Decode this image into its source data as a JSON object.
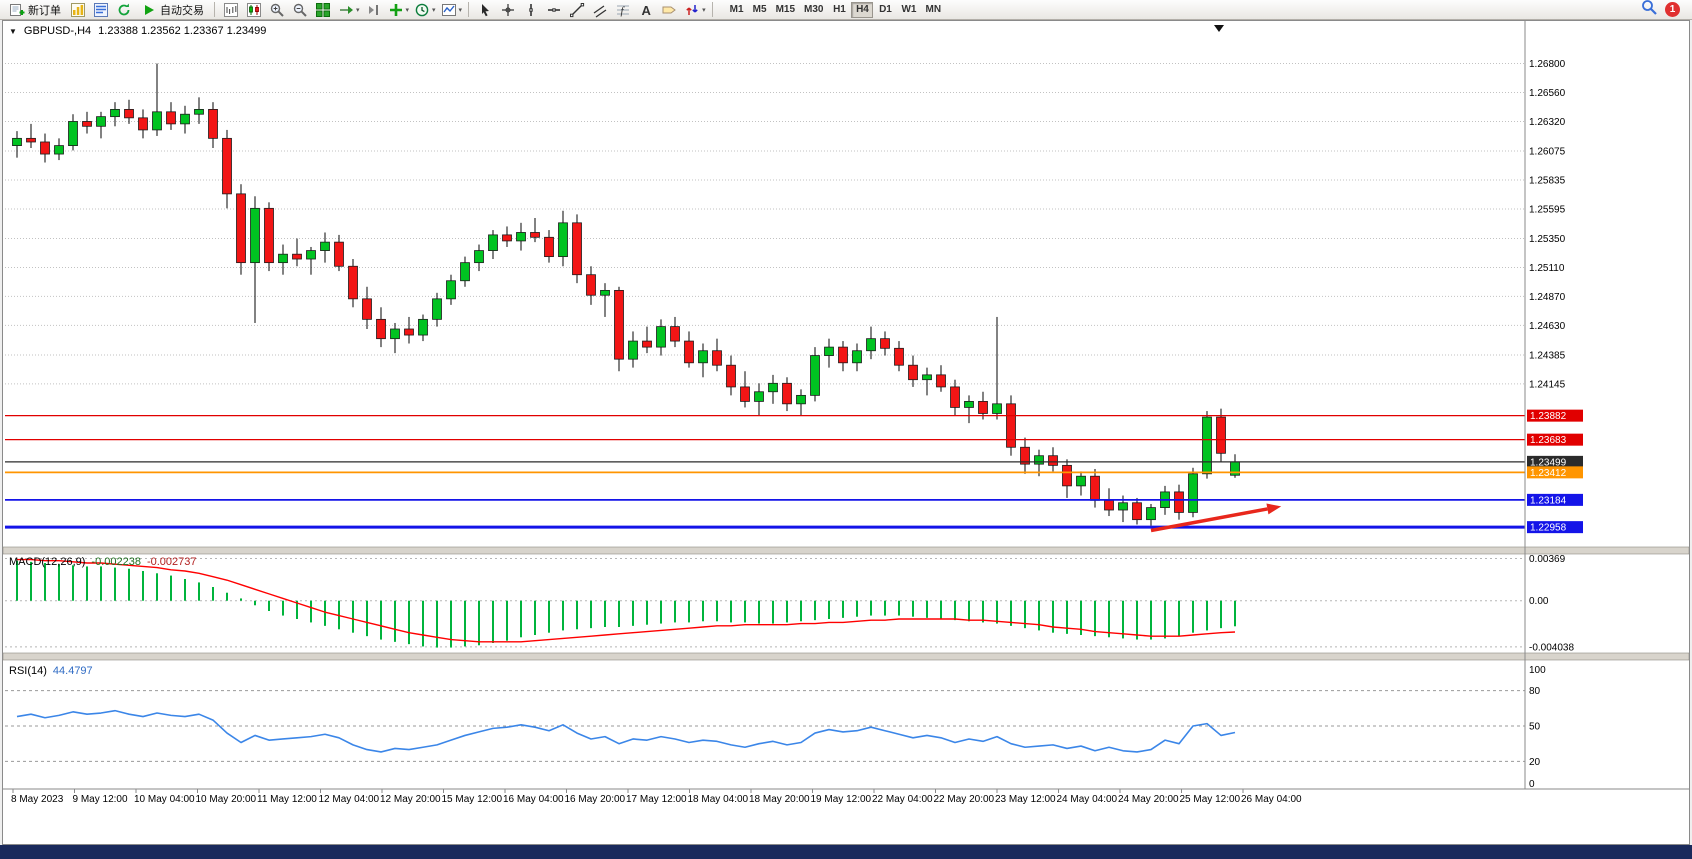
{
  "toolbar": {
    "new_order_label": "新订单",
    "auto_trading_label": "自动交易",
    "timeframes": [
      "M1",
      "M5",
      "M15",
      "M30",
      "H1",
      "H4",
      "D1",
      "W1",
      "MN"
    ],
    "active_timeframe": "H4",
    "notification_count": "1",
    "icon_names": [
      "new-order-icon",
      "charts-icon",
      "market-watch-icon",
      "navigator-icon",
      "autotrading-play-icon",
      "bar-chart-icon",
      "candlestick-chart-icon",
      "zoom-in-icon",
      "zoom-out-icon",
      "tile-windows-icon",
      "auto-scroll-icon",
      "chart-shift-icon",
      "indicators-icon",
      "periods-icon",
      "templates-icon",
      "cursor-icon",
      "crosshair-icon",
      "vertical-line-icon",
      "horizontal-line-icon",
      "trendline-icon",
      "channel-icon",
      "fibonacci-icon",
      "text-icon",
      "label-icon",
      "arrows-icon",
      "search-icon",
      "notification-badge"
    ]
  },
  "x_axis": {
    "labels": [
      "8 May 2023",
      "9 May 12:00",
      "10 May 04:00",
      "10 May 20:00",
      "11 May 12:00",
      "12 May 04:00",
      "12 May 20:00",
      "15 May 12:00",
      "16 May 04:00",
      "16 May 20:00",
      "17 May 12:00",
      "18 May 04:00",
      "18 May 20:00",
      "19 May 12:00",
      "22 May 04:00",
      "22 May 20:00",
      "23 May 12:00",
      "24 May 04:00",
      "24 May 20:00",
      "25 May 12:00",
      "26 May 04:00"
    ]
  },
  "chart_data": [
    {
      "type": "candlestick",
      "symbol": "GBPUSD-,H4",
      "ohlc_text": "1.23388 1.23562 1.23367 1.23499",
      "open": "1.23388",
      "high": "1.23562",
      "low": "1.23367",
      "close": "1.23499",
      "ylim": [
        1.2281,
        1.2702
      ],
      "y_ticks": [
        "1.26800",
        "1.26560",
        "1.26320",
        "1.26075",
        "1.25835",
        "1.25595",
        "1.25350",
        "1.25110",
        "1.24870",
        "1.24630",
        "1.24385",
        "1.24145"
      ],
      "grid": "dotted-horizontal",
      "up_color": "#00C321",
      "down_color": "#F21515",
      "outline_color": "#1c1c1c",
      "candles": [
        [
          1.2612,
          1.2624,
          1.2602,
          1.2618
        ],
        [
          1.2618,
          1.263,
          1.261,
          1.2615
        ],
        [
          1.2615,
          1.2622,
          1.2598,
          1.2605
        ],
        [
          1.2605,
          1.2618,
          1.26,
          1.2612
        ],
        [
          1.2612,
          1.2638,
          1.2608,
          1.2632
        ],
        [
          1.2632,
          1.264,
          1.2622,
          1.2628
        ],
        [
          1.2628,
          1.264,
          1.2618,
          1.2636
        ],
        [
          1.2636,
          1.2648,
          1.2628,
          1.2642
        ],
        [
          1.2642,
          1.265,
          1.263,
          1.2635
        ],
        [
          1.2635,
          1.2642,
          1.2618,
          1.2625
        ],
        [
          1.2625,
          1.268,
          1.262,
          1.264
        ],
        [
          1.264,
          1.2648,
          1.2625,
          1.263
        ],
        [
          1.263,
          1.2645,
          1.2622,
          1.2638
        ],
        [
          1.2638,
          1.2652,
          1.263,
          1.2642
        ],
        [
          1.2642,
          1.2648,
          1.261,
          1.2618
        ],
        [
          1.2618,
          1.2625,
          1.256,
          1.2572
        ],
        [
          1.2572,
          1.258,
          1.2505,
          1.2515
        ],
        [
          1.2515,
          1.257,
          1.2465,
          1.256
        ],
        [
          1.256,
          1.2565,
          1.2508,
          1.2515
        ],
        [
          1.2515,
          1.253,
          1.2505,
          1.2522
        ],
        [
          1.2522,
          1.2535,
          1.2512,
          1.2518
        ],
        [
          1.2518,
          1.2528,
          1.2505,
          1.2525
        ],
        [
          1.2525,
          1.254,
          1.2515,
          1.2532
        ],
        [
          1.2532,
          1.2538,
          1.2508,
          1.2512
        ],
        [
          1.2512,
          1.2518,
          1.2478,
          1.2485
        ],
        [
          1.2485,
          1.2495,
          1.246,
          1.2468
        ],
        [
          1.2468,
          1.2478,
          1.2445,
          1.2452
        ],
        [
          1.2452,
          1.2465,
          1.244,
          1.246
        ],
        [
          1.246,
          1.247,
          1.2448,
          1.2455
        ],
        [
          1.2455,
          1.2472,
          1.245,
          1.2468
        ],
        [
          1.2468,
          1.249,
          1.2462,
          1.2485
        ],
        [
          1.2485,
          1.2505,
          1.248,
          1.25
        ],
        [
          1.25,
          1.252,
          1.2495,
          1.2515
        ],
        [
          1.2515,
          1.253,
          1.2508,
          1.2525
        ],
        [
          1.2525,
          1.2542,
          1.2518,
          1.2538
        ],
        [
          1.2538,
          1.2545,
          1.2528,
          1.2533
        ],
        [
          1.2533,
          1.2548,
          1.2525,
          1.254
        ],
        [
          1.254,
          1.2552,
          1.2532,
          1.2536
        ],
        [
          1.2536,
          1.2542,
          1.2515,
          1.252
        ],
        [
          1.252,
          1.2558,
          1.2512,
          1.2548
        ],
        [
          1.2548,
          1.2555,
          1.2498,
          1.2505
        ],
        [
          1.2505,
          1.2512,
          1.248,
          1.2488
        ],
        [
          1.2488,
          1.2498,
          1.247,
          1.2492
        ],
        [
          1.2492,
          1.2495,
          1.2425,
          1.2435
        ],
        [
          1.2435,
          1.2458,
          1.2428,
          1.245
        ],
        [
          1.245,
          1.2462,
          1.244,
          1.2445
        ],
        [
          1.2445,
          1.2468,
          1.2438,
          1.2462
        ],
        [
          1.2462,
          1.247,
          1.2445,
          1.245
        ],
        [
          1.245,
          1.2458,
          1.2428,
          1.2432
        ],
        [
          1.2432,
          1.2448,
          1.242,
          1.2442
        ],
        [
          1.2442,
          1.2452,
          1.2425,
          1.243
        ],
        [
          1.243,
          1.2438,
          1.2405,
          1.2412
        ],
        [
          1.2412,
          1.2425,
          1.2395,
          1.24
        ],
        [
          1.24,
          1.2415,
          1.2388,
          1.2408
        ],
        [
          1.2408,
          1.2422,
          1.2398,
          1.2415
        ],
        [
          1.2415,
          1.242,
          1.2392,
          1.2398
        ],
        [
          1.2398,
          1.241,
          1.2388,
          1.2405
        ],
        [
          1.2405,
          1.2445,
          1.24,
          1.2438
        ],
        [
          1.2438,
          1.2452,
          1.2428,
          1.2445
        ],
        [
          1.2445,
          1.245,
          1.2425,
          1.2432
        ],
        [
          1.2432,
          1.2448,
          1.2425,
          1.2442
        ],
        [
          1.2442,
          1.2462,
          1.2435,
          1.2452
        ],
        [
          1.2452,
          1.2458,
          1.2438,
          1.2444
        ],
        [
          1.2444,
          1.245,
          1.2425,
          1.243
        ],
        [
          1.243,
          1.2438,
          1.2412,
          1.2418
        ],
        [
          1.2418,
          1.2428,
          1.2405,
          1.2422
        ],
        [
          1.2422,
          1.243,
          1.2408,
          1.2412
        ],
        [
          1.2412,
          1.2418,
          1.2388,
          1.2395
        ],
        [
          1.2395,
          1.2405,
          1.2382,
          1.24
        ],
        [
          1.24,
          1.2408,
          1.2385,
          1.239
        ],
        [
          1.239,
          1.247,
          1.2385,
          1.2398
        ],
        [
          1.2398,
          1.2405,
          1.2355,
          1.2362
        ],
        [
          1.2362,
          1.237,
          1.234,
          1.2348
        ],
        [
          1.2348,
          1.236,
          1.2338,
          1.2355
        ],
        [
          1.2355,
          1.2362,
          1.2342,
          1.2347
        ],
        [
          1.2347,
          1.2352,
          1.232,
          1.233
        ],
        [
          1.233,
          1.2342,
          1.2322,
          1.2338
        ],
        [
          1.2338,
          1.2344,
          1.2312,
          1.2318
        ],
        [
          1.2318,
          1.2328,
          1.2305,
          1.231
        ],
        [
          1.231,
          1.2322,
          1.23,
          1.2316
        ],
        [
          1.2316,
          1.232,
          1.2298,
          1.2302
        ],
        [
          1.2302,
          1.2315,
          1.2297,
          1.2312
        ],
        [
          1.2312,
          1.233,
          1.2306,
          1.2325
        ],
        [
          1.2325,
          1.2331,
          1.2302,
          1.2308
        ],
        [
          1.2308,
          1.2345,
          1.2304,
          1.234
        ],
        [
          1.234,
          1.2392,
          1.2336,
          1.2387
        ],
        [
          1.2387,
          1.2394,
          1.235,
          1.2357
        ],
        [
          1.23388,
          1.23562,
          1.23367,
          1.23499
        ]
      ],
      "hlines": [
        {
          "price": 1.23882,
          "label": "1.23882",
          "color": "#E10000",
          "width": 1.3
        },
        {
          "price": 1.23683,
          "label": "1.23683",
          "color": "#E10000",
          "width": 1.3
        },
        {
          "price": 1.23499,
          "label": "1.23499",
          "color": "#2B2B2B",
          "width": 1.2
        },
        {
          "price": 1.23412,
          "label": "1.23412",
          "color": "#FF9500",
          "width": 1.8
        },
        {
          "price": 1.23184,
          "label": "1.23184",
          "color": "#1414E8",
          "width": 1.8
        },
        {
          "price": 1.22958,
          "label": "1.22958",
          "color": "#1414E8",
          "width": 3
        }
      ],
      "annotations": [
        {
          "type": "arrow",
          "color": "#E8271C",
          "from_bar": 81,
          "from_price": 1.2293,
          "to_bar": 90.3,
          "to_price": 1.2313
        }
      ]
    },
    {
      "type": "bar",
      "name": "MACD",
      "params": "(12,26,9)",
      "label": "MACD(12,26,9)",
      "value_main": "-0.002238",
      "value_signal": "-0.002737",
      "axis_ticks": [
        "0.00369",
        "0.00",
        "-0.004038"
      ],
      "ylim": [
        -0.0044,
        0.004
      ],
      "histogram_color": "#00B43C",
      "signal_color": "#FF0000",
      "histogram": [
        0.0035,
        0.0034,
        0.0033,
        0.0032,
        0.0031,
        0.003,
        0.003,
        0.0029,
        0.0028,
        0.0026,
        0.0024,
        0.0022,
        0.0019,
        0.0016,
        0.0012,
        0.0007,
        0.0002,
        -0.0004,
        -0.0009,
        -0.0013,
        -0.0016,
        -0.0019,
        -0.0022,
        -0.0025,
        -0.0028,
        -0.0031,
        -0.0034,
        -0.0036,
        -0.0038,
        -0.004,
        -0.0041,
        -0.0041,
        -0.004,
        -0.0039,
        -0.0037,
        -0.0035,
        -0.0032,
        -0.003,
        -0.0028,
        -0.0026,
        -0.0025,
        -0.0024,
        -0.0023,
        -0.0023,
        -0.0022,
        -0.0021,
        -0.002,
        -0.0019,
        -0.0019,
        -0.0018,
        -0.0018,
        -0.0019,
        -0.0019,
        -0.002,
        -0.002,
        -0.0019,
        -0.0018,
        -0.0017,
        -0.0016,
        -0.0015,
        -0.0014,
        -0.0013,
        -0.0013,
        -0.0013,
        -0.0014,
        -0.0015,
        -0.0016,
        -0.0017,
        -0.0018,
        -0.0019,
        -0.002,
        -0.0022,
        -0.0024,
        -0.0026,
        -0.0028,
        -0.0029,
        -0.003,
        -0.0031,
        -0.0032,
        -0.0033,
        -0.0034,
        -0.0034,
        -0.0033,
        -0.0031,
        -0.0028,
        -0.0026,
        -0.0024,
        -0.002238
      ],
      "signal": [
        0.0036,
        0.0036,
        0.0035,
        0.0035,
        0.0034,
        0.0033,
        0.0033,
        0.0032,
        0.0031,
        0.003,
        0.0029,
        0.0027,
        0.0026,
        0.0024,
        0.0021,
        0.0018,
        0.0014,
        0.001,
        0.0006,
        0.0002,
        -0.0002,
        -0.0006,
        -0.001,
        -0.0013,
        -0.0016,
        -0.0019,
        -0.0022,
        -0.0025,
        -0.0028,
        -0.003,
        -0.0032,
        -0.0034,
        -0.0035,
        -0.0036,
        -0.0036,
        -0.0036,
        -0.0036,
        -0.0035,
        -0.0034,
        -0.0033,
        -0.0032,
        -0.0031,
        -0.003,
        -0.0029,
        -0.0028,
        -0.0027,
        -0.0026,
        -0.0025,
        -0.0024,
        -0.0023,
        -0.0022,
        -0.0022,
        -0.0021,
        -0.0021,
        -0.0021,
        -0.0021,
        -0.002,
        -0.002,
        -0.0019,
        -0.0019,
        -0.0018,
        -0.0017,
        -0.0017,
        -0.0016,
        -0.0016,
        -0.0016,
        -0.0016,
        -0.0016,
        -0.0017,
        -0.0017,
        -0.0018,
        -0.0019,
        -0.002,
        -0.0021,
        -0.0023,
        -0.0024,
        -0.0025,
        -0.0027,
        -0.0028,
        -0.0029,
        -0.003,
        -0.0031,
        -0.0031,
        -0.0031,
        -0.003,
        -0.0029,
        -0.0028,
        -0.002737
      ]
    },
    {
      "type": "line",
      "name": "RSI",
      "params": "(14)",
      "label": "RSI(14)",
      "value": "44.4797",
      "axis_ticks": [
        "100",
        "80",
        "50",
        "20",
        "0"
      ],
      "levels": [
        80,
        50,
        20
      ],
      "ylim": [
        0,
        100
      ],
      "line_color": "#3B86E8",
      "values": [
        58,
        60,
        57,
        59,
        62,
        60,
        61,
        63,
        60,
        58,
        61,
        59,
        58,
        60,
        55,
        44,
        36,
        42,
        38,
        39,
        40,
        41,
        43,
        40,
        34,
        30,
        28,
        31,
        30,
        32,
        34,
        38,
        42,
        45,
        48,
        49,
        51,
        49,
        46,
        51,
        44,
        39,
        41,
        35,
        39,
        38,
        41,
        39,
        36,
        38,
        37,
        34,
        32,
        35,
        37,
        34,
        36,
        44,
        47,
        45,
        46,
        49,
        46,
        43,
        40,
        42,
        40,
        36,
        39,
        37,
        41,
        35,
        32,
        33,
        34,
        31,
        33,
        29,
        32,
        29,
        28,
        30,
        38,
        35,
        50,
        52,
        42,
        44.4797
      ]
    }
  ]
}
